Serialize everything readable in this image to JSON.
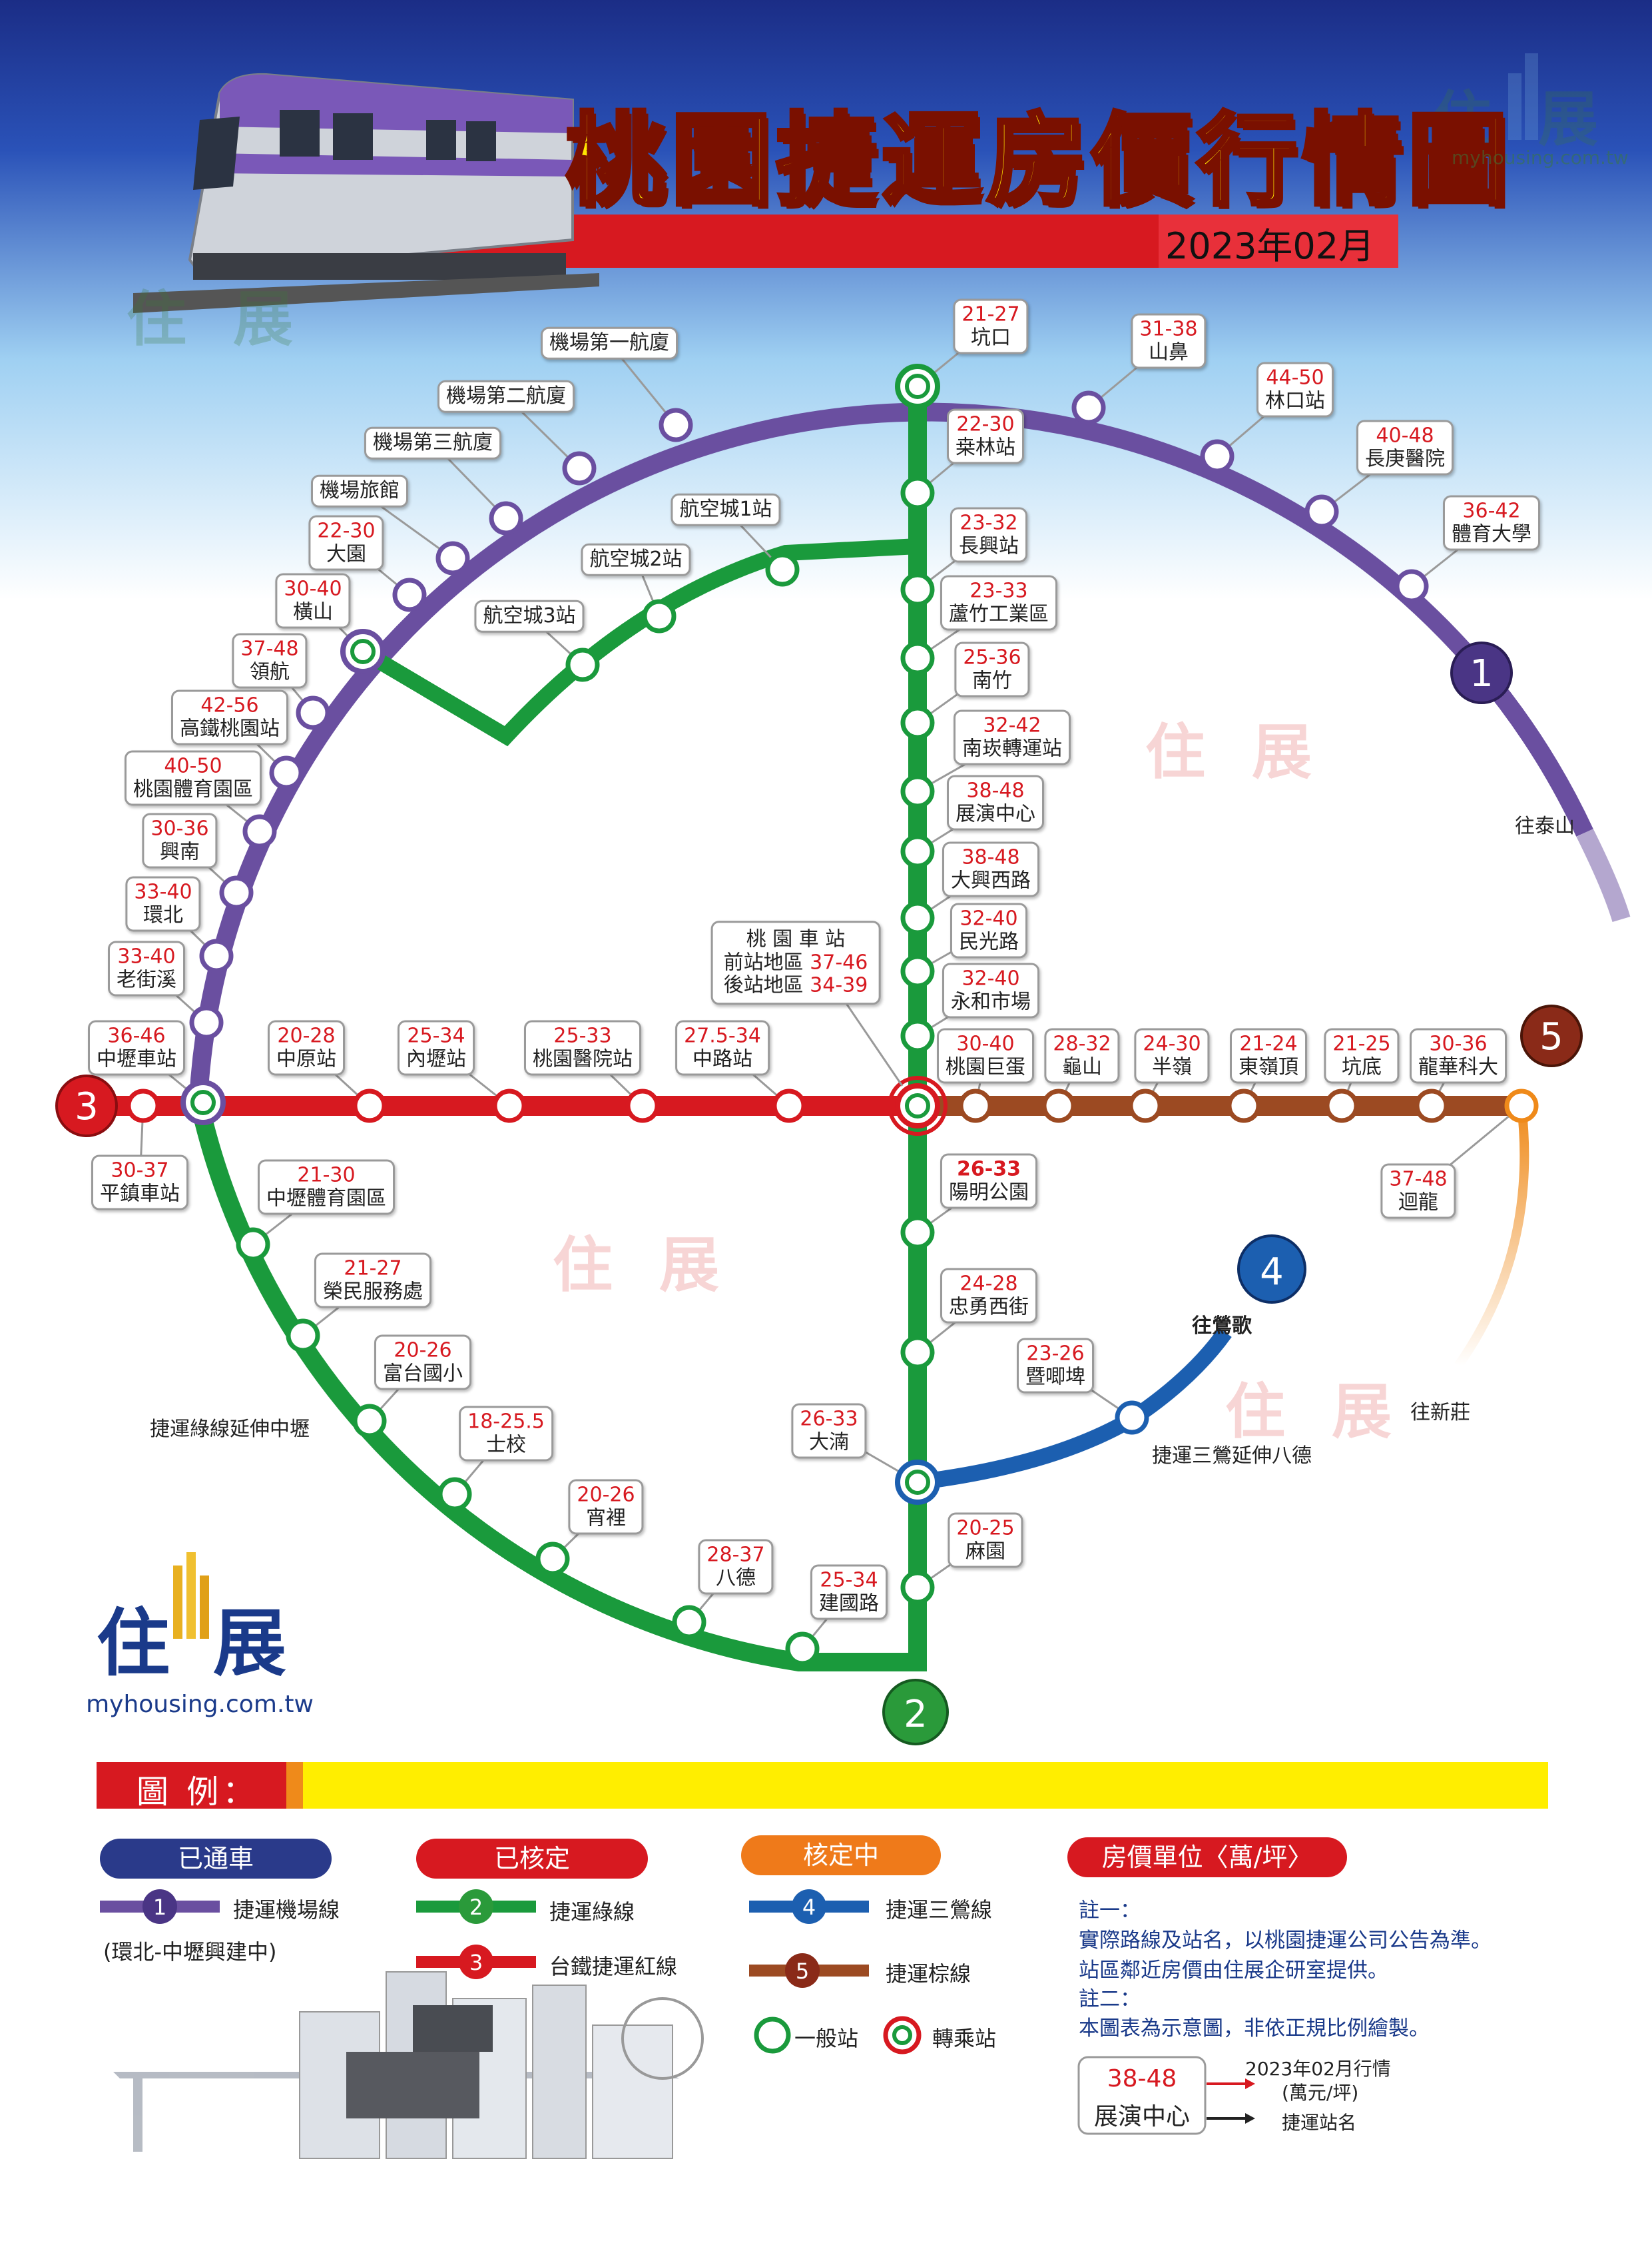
{
  "header": {
    "title": "桃園捷運房價行情圖",
    "date": "2023年02月",
    "watermark": "住展",
    "watermark_url": "myhousing.com.tw"
  },
  "colors": {
    "purple": "#6a4fa0",
    "green": "#1a9a3c",
    "red": "#d71920",
    "blue": "#1c5fb0",
    "brown": "#9c4a22",
    "orange": "#ef8a1a"
  },
  "lines": {
    "line1": {
      "number": "1",
      "direction": "往泰山"
    },
    "line2": {
      "number": "2",
      "extension": "捷運綠線延伸中壢"
    },
    "line3": {
      "number": "3"
    },
    "line4": {
      "number": "4",
      "direction": "往鶯歌",
      "extension": "捷運三鶯延伸八德"
    },
    "line5": {
      "number": "5",
      "direction": "往新莊"
    }
  },
  "stations": [
    {
      "price": "21-27",
      "name": "坑口"
    },
    {
      "price": "31-38",
      "name": "山鼻"
    },
    {
      "price": "44-50",
      "name": "林口站"
    },
    {
      "price": "40-48",
      "name": "長庚醫院"
    },
    {
      "price": "36-42",
      "name": "體育大學"
    },
    {
      "price": "",
      "name": "機場第一航廈"
    },
    {
      "price": "",
      "name": "機場第二航廈"
    },
    {
      "price": "",
      "name": "機場第三航廈"
    },
    {
      "price": "",
      "name": "機場旅館"
    },
    {
      "price": "22-30",
      "name": "大園"
    },
    {
      "price": "30-40",
      "name": "橫山"
    },
    {
      "price": "37-48",
      "name": "領航"
    },
    {
      "price": "42-56",
      "name": "高鐵桃園站"
    },
    {
      "price": "40-50",
      "name": "桃園體育園區"
    },
    {
      "price": "30-36",
      "name": "興南"
    },
    {
      "price": "33-40",
      "name": "環北"
    },
    {
      "price": "33-40",
      "name": "老街溪"
    },
    {
      "price": "36-46",
      "name": "中壢車站"
    },
    {
      "price": "30-37",
      "name": "平鎮車站"
    },
    {
      "price": "",
      "name": "航空城1站"
    },
    {
      "price": "",
      "name": "航空城2站"
    },
    {
      "price": "",
      "name": "航空城3站"
    },
    {
      "price": "22-30",
      "name": "桒林站"
    },
    {
      "price": "23-32",
      "name": "長興站"
    },
    {
      "price": "23-33",
      "name": "蘆竹工業區"
    },
    {
      "price": "25-36",
      "name": "南竹"
    },
    {
      "price": "32-42",
      "name": "南崁轉運站"
    },
    {
      "price": "38-48",
      "name": "展演中心"
    },
    {
      "price": "38-48",
      "name": "大興西路"
    },
    {
      "price": "32-40",
      "name": "民光路"
    },
    {
      "price": "32-40",
      "name": "永和市場"
    },
    {
      "price": "20-28",
      "name": "中原站"
    },
    {
      "price": "25-34",
      "name": "內壢站"
    },
    {
      "price": "25-33",
      "name": "桃園醫院站"
    },
    {
      "price": "27.5-34",
      "name": "中路站"
    },
    {
      "price": "30-40",
      "name": "桃園巨蛋"
    },
    {
      "price": "28-32",
      "name": "龜山"
    },
    {
      "price": "24-30",
      "name": "半嶺"
    },
    {
      "price": "21-24",
      "name": "東嶺頂"
    },
    {
      "price": "21-25",
      "name": "坑底"
    },
    {
      "price": "30-36",
      "name": "龍華科大"
    },
    {
      "price": "37-48",
      "name": "迴龍"
    },
    {
      "price": "26-33",
      "name": "陽明公園"
    },
    {
      "price": "24-28",
      "name": "忠勇西街"
    },
    {
      "price": "23-26",
      "name": "暨唧埤"
    },
    {
      "price": "26-33",
      "name": "大湳"
    },
    {
      "price": "20-25",
      "name": "麻園"
    },
    {
      "price": "21-30",
      "name": "中壢體育園區"
    },
    {
      "price": "21-27",
      "name": "榮民服務處"
    },
    {
      "price": "20-26",
      "name": "富台國小"
    },
    {
      "price": "18-25.5",
      "name": "士校"
    },
    {
      "price": "20-26",
      "name": "宵裡"
    },
    {
      "price": "28-37",
      "name": "八德"
    },
    {
      "price": "25-34",
      "name": "建國路"
    }
  ],
  "taoyuan_station": {
    "name": "桃 園 車 站",
    "front_label": "前站地區",
    "front_price": "37-46",
    "back_label": "後站地區",
    "back_price": "34-39"
  },
  "legend": {
    "title": "圖 例：",
    "opened": "已通車",
    "approved": "已核定",
    "pending": "核定中",
    "price_unit": "房價單位〈萬/坪〉",
    "airport_line": "捷運機場線",
    "airport_note": "(環北-中壢興建中)",
    "green_line": "捷運綠線",
    "red_line": "台鐵捷運紅線",
    "sanying_line": "捷運三鶯線",
    "brown_line": "捷運棕線",
    "normal_station": "一般站",
    "transfer_station": "轉乘站",
    "note1_title": "註一：",
    "note1_line1": "實際路線及站名，以桃園捷運公司公告為準。",
    "note1_line2": "站區鄰近房價由住展企研室提供。",
    "note2_title": "註二：",
    "note2_line1": "本圖表為示意圖，非依正規比例繪製。",
    "sample_price": "38-48",
    "sample_name": "展演中心",
    "sample_price_desc1": "2023年02月行情",
    "sample_price_desc2": "(萬元/坪)",
    "sample_name_desc": "捷運站名"
  }
}
